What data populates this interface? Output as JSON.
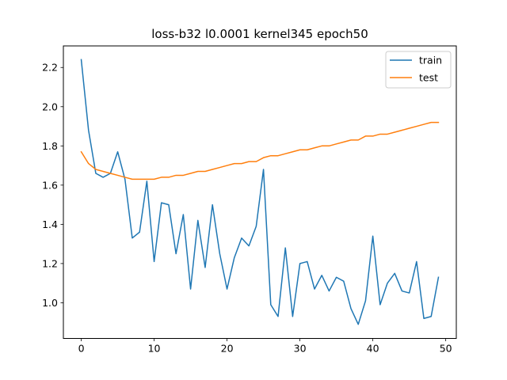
{
  "chart_data": {
    "type": "line",
    "title": "loss-b32 l0.0001 kernel345 epoch50",
    "xlabel": "",
    "ylabel": "",
    "xlim": [
      -2.45,
      51.45
    ],
    "ylim": [
      0.818,
      2.31
    ],
    "x_ticks": [
      0,
      10,
      20,
      30,
      40,
      50
    ],
    "y_ticks": [
      1.0,
      1.2,
      1.4,
      1.6,
      1.8,
      2.0,
      2.2
    ],
    "grid": false,
    "legend_position": "top-right",
    "x": [
      0,
      1,
      2,
      3,
      4,
      5,
      6,
      7,
      8,
      9,
      10,
      11,
      12,
      13,
      14,
      15,
      16,
      17,
      18,
      19,
      20,
      21,
      22,
      23,
      24,
      25,
      26,
      27,
      28,
      29,
      30,
      31,
      32,
      33,
      34,
      35,
      36,
      37,
      38,
      39,
      40,
      41,
      42,
      43,
      44,
      45,
      46,
      47,
      48,
      49
    ],
    "series": [
      {
        "name": "train",
        "color": "#1f77b4",
        "values": [
          2.24,
          1.88,
          1.66,
          1.64,
          1.66,
          1.77,
          1.63,
          1.33,
          1.36,
          1.62,
          1.21,
          1.51,
          1.5,
          1.25,
          1.45,
          1.07,
          1.42,
          1.18,
          1.5,
          1.25,
          1.07,
          1.23,
          1.33,
          1.29,
          1.39,
          1.68,
          0.99,
          0.93,
          1.28,
          0.93,
          1.2,
          1.21,
          1.07,
          1.14,
          1.06,
          1.13,
          1.11,
          0.97,
          0.89,
          1.01,
          1.34,
          0.99,
          1.1,
          1.15,
          1.06,
          1.05,
          1.21,
          0.92,
          0.93,
          1.13
        ]
      },
      {
        "name": "test",
        "color": "#ff7f0e",
        "values": [
          1.77,
          1.71,
          1.68,
          1.67,
          1.66,
          1.65,
          1.64,
          1.63,
          1.63,
          1.63,
          1.63,
          1.64,
          1.64,
          1.65,
          1.65,
          1.66,
          1.67,
          1.67,
          1.68,
          1.69,
          1.7,
          1.71,
          1.71,
          1.72,
          1.72,
          1.74,
          1.75,
          1.75,
          1.76,
          1.77,
          1.78,
          1.78,
          1.79,
          1.8,
          1.8,
          1.81,
          1.82,
          1.83,
          1.83,
          1.85,
          1.85,
          1.86,
          1.86,
          1.87,
          1.88,
          1.89,
          1.9,
          1.91,
          1.92,
          1.92
        ]
      }
    ]
  }
}
